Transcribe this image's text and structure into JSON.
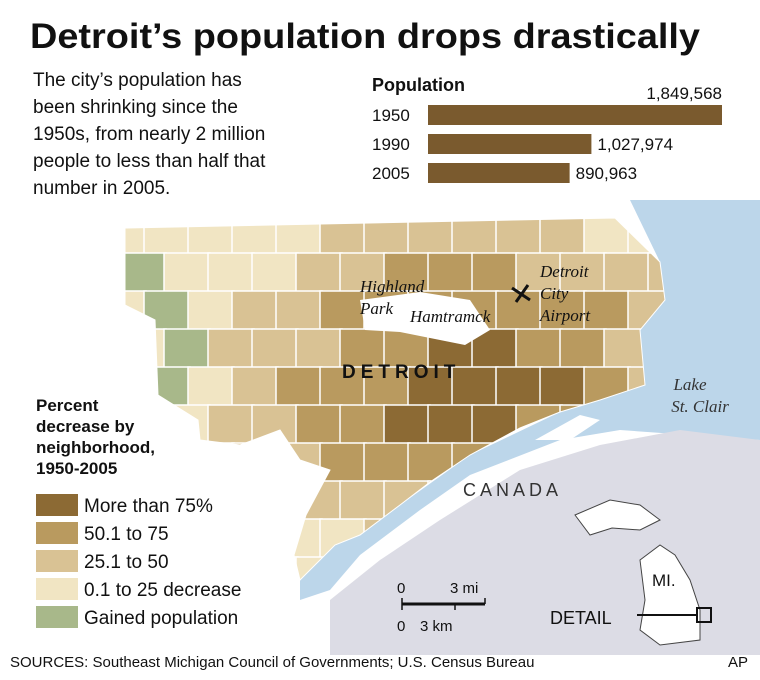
{
  "title": "Detroit’s population drops drastically",
  "description": [
    "The city’s population has",
    "been shrinking since the",
    "1950s, from nearly 2 million",
    "people to less than half that",
    "number in 2005."
  ],
  "chart_data": {
    "type": "bar",
    "orientation": "horizontal",
    "title": "Population",
    "categories": [
      "1950",
      "1990",
      "2005"
    ],
    "values": [
      1849568,
      1027974,
      890963
    ],
    "value_labels": [
      "1,849,568",
      "1,027,974",
      "890,963"
    ],
    "color": "#7a5a2e"
  },
  "map": {
    "labels": {
      "highland_park": [
        "Highland",
        "Park"
      ],
      "hamtramck": "Hamtramck",
      "airport": [
        "Detroit",
        "City",
        "Airport"
      ],
      "city": "DETROIT",
      "lake": [
        "Lake",
        "St. Clair"
      ],
      "country": "CANADA",
      "state": "MI.",
      "detail": "DETAIL"
    },
    "scale": {
      "mi_zero": "0",
      "mi": "3 mi",
      "km_zero": "0",
      "km": "3 km"
    }
  },
  "legend": {
    "title_lines": [
      "Percent",
      "decrease by",
      "neighborhood,",
      "1950-2005"
    ],
    "items": [
      {
        "label": "More than 75%",
        "color": "#8c6a34"
      },
      {
        "label": "50.1 to 75",
        "color": "#b99a5f"
      },
      {
        "label": "25.1 to 50",
        "color": "#d9c294"
      },
      {
        "label": "0.1 to 25 decrease",
        "color": "#f1e5c3"
      },
      {
        "label": "Gained population",
        "color": "#a8b88a"
      }
    ]
  },
  "footer": {
    "sources": "SOURCES: Southeast Michigan Council of Governments; U.S. Census Bureau",
    "credit": "AP"
  }
}
